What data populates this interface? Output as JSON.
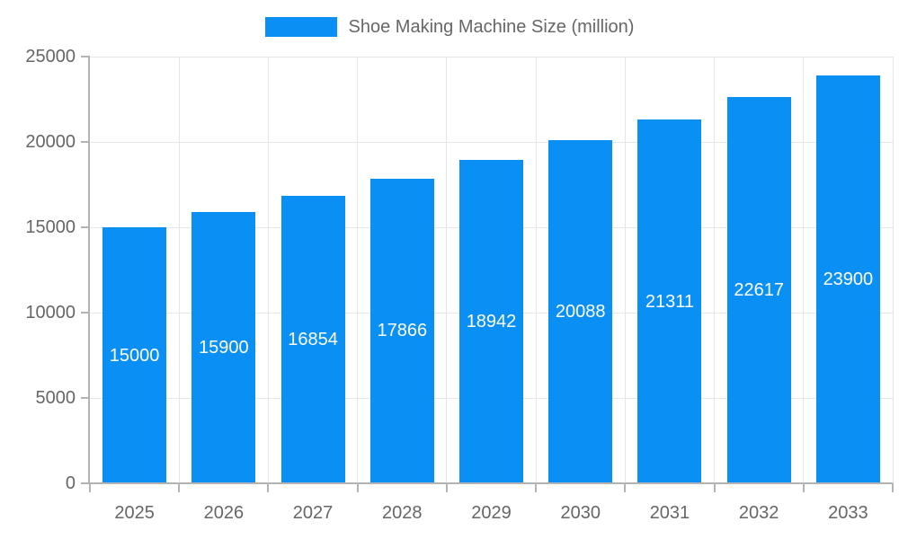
{
  "legend": {
    "label": "Shoe Making Machine Size (million)"
  },
  "chart_data": {
    "type": "bar",
    "title": "Shoe Making Machine Size (million)",
    "categories": [
      "2025",
      "2026",
      "2027",
      "2028",
      "2029",
      "2030",
      "2031",
      "2032",
      "2033"
    ],
    "values": [
      15000,
      15900,
      16854,
      17866,
      18942,
      20088,
      21311,
      22617,
      23900
    ],
    "xlabel": "",
    "ylabel": "",
    "ylim": [
      0,
      25000
    ],
    "yticks": [
      0,
      5000,
      10000,
      15000,
      20000,
      25000
    ],
    "legend_position": "top-center",
    "grid": true,
    "value_labels_inside_bars": true,
    "colors": {
      "bar": "#0a8ff5",
      "grid_line": "#e6e6e6",
      "axis_line": "#b3b3b3",
      "axis_text": "#666666",
      "value_label_text": "#ffffff",
      "background": "#ffffff"
    }
  }
}
